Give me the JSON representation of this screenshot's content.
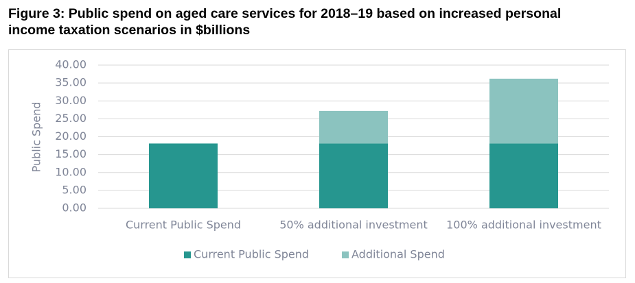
{
  "chart_data": {
    "type": "stacked-bar",
    "title": "Figure 3: Public spend on aged care services for 2018–19 based on increased personal income taxation scenarios in $billions",
    "y_label": "Public Spend",
    "categories": [
      "Current Public Spend",
      "50% additional investment",
      "100% additional investment"
    ],
    "series": [
      {
        "name": "Current Public Spend",
        "color": "#26968f",
        "values": [
          18.1,
          18.1,
          18.1
        ]
      },
      {
        "name": "Additional Spend",
        "color": "#8bc3bf",
        "values": [
          0,
          9.1,
          18.1
        ]
      }
    ],
    "ylim": [
      0,
      40
    ],
    "yticks": [
      {
        "value": 0,
        "label": "0.00"
      },
      {
        "value": 5,
        "label": "5.00"
      },
      {
        "value": 10,
        "label": "10.00"
      },
      {
        "value": 15,
        "label": "15.00"
      },
      {
        "value": 20,
        "label": "20.00"
      },
      {
        "value": 25,
        "label": "25.00"
      },
      {
        "value": 30,
        "label": "30.00"
      },
      {
        "value": 35,
        "label": "35.00"
      },
      {
        "value": 40,
        "label": "40.00"
      }
    ],
    "grid": true,
    "legend": "bottom"
  }
}
